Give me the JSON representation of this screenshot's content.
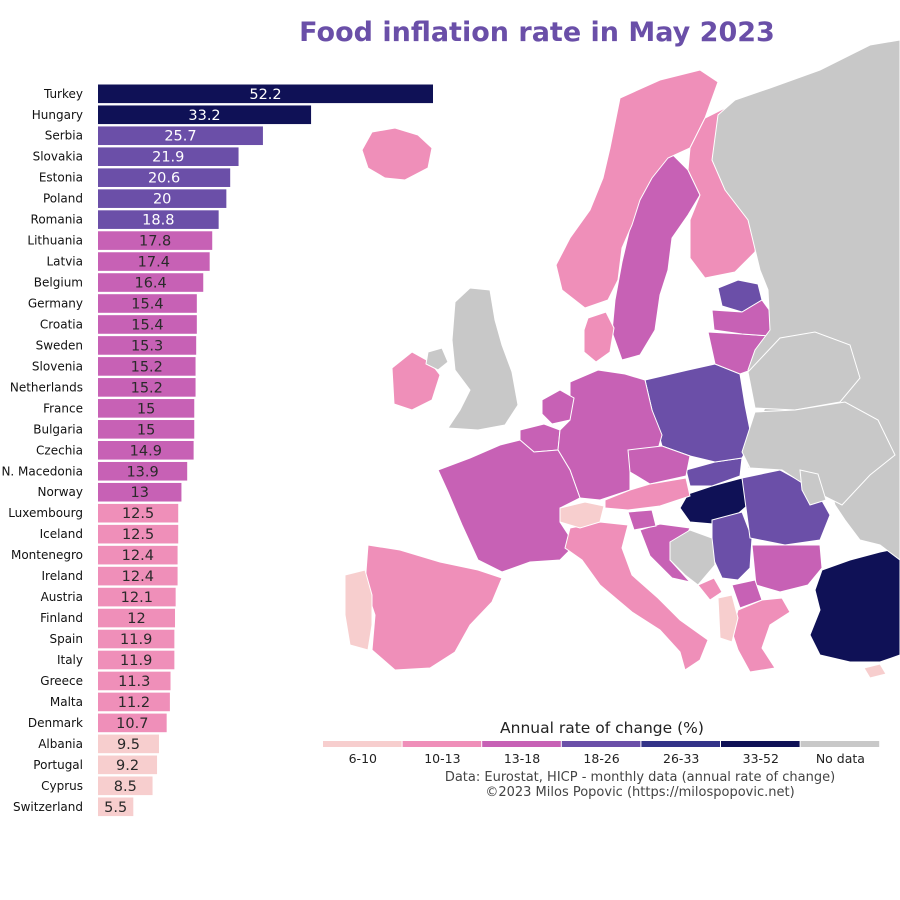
{
  "chart_data": {
    "type": "bar",
    "orientation": "horizontal",
    "title": "Food inflation rate in May 2023",
    "categories": [
      "Turkey",
      "Hungary",
      "Serbia",
      "Slovakia",
      "Estonia",
      "Poland",
      "Romania",
      "Lithuania",
      "Latvia",
      "Belgium",
      "Germany",
      "Croatia",
      "Sweden",
      "Slovenia",
      "Netherlands",
      "France",
      "Bulgaria",
      "Czechia",
      "N. Macedonia",
      "Norway",
      "Luxembourg",
      "Iceland",
      "Montenegro",
      "Ireland",
      "Austria",
      "Finland",
      "Spain",
      "Italy",
      "Greece",
      "Malta",
      "Denmark",
      "Albania",
      "Portugal",
      "Cyprus",
      "Switzerland"
    ],
    "values": [
      52.2,
      33.2,
      25.7,
      21.9,
      20.6,
      20,
      18.8,
      17.8,
      17.4,
      16.4,
      15.4,
      15.4,
      15.3,
      15.2,
      15.2,
      15,
      15,
      14.9,
      13.9,
      13,
      12.5,
      12.5,
      12.4,
      12.4,
      12.1,
      12,
      11.9,
      11.9,
      11.3,
      11.2,
      10.7,
      9.5,
      9.2,
      8.5,
      5.5
    ],
    "value_labels": [
      "52.2",
      "33.2",
      "25.7",
      "21.9",
      "20.6",
      "20",
      "18.8",
      "17.8",
      "17.4",
      "16.4",
      "15.4",
      "15.4",
      "15.3",
      "15.2",
      "15.2",
      "15",
      "15",
      "14.9",
      "13.9",
      "13",
      "12.5",
      "12.5",
      "12.4",
      "12.4",
      "12.1",
      "12",
      "11.9",
      "11.9",
      "11.3",
      "11.2",
      "10.7",
      "9.5",
      "9.2",
      "8.5",
      "5.5"
    ],
    "xlim": [
      0,
      52.2
    ],
    "legend": {
      "title": "Annual rate of change (%)",
      "placement": "bottom-right",
      "bins": [
        {
          "label": "6-10",
          "min": 0,
          "max": 10,
          "color": "#f7cece"
        },
        {
          "label": "10-13",
          "min": 10,
          "max": 13,
          "color": "#ef8fb9"
        },
        {
          "label": "13-18",
          "min": 13,
          "max": 18,
          "color": "#c761b5"
        },
        {
          "label": "18-26",
          "min": 18,
          "max": 26,
          "color": "#6b4fa8"
        },
        {
          "label": "26-33",
          "min": 26,
          "max": 33,
          "color": "#333388"
        },
        {
          "label": "33-52",
          "min": 33,
          "max": 100,
          "color": "#0f1156"
        },
        {
          "label": "No data",
          "min": null,
          "max": null,
          "color": "#c8c8c8"
        }
      ]
    },
    "source_lines": [
      "Data: Eurostat, HICP - monthly data (annual rate of change)",
      "©2023 Milos Popovic (https://milospopovic.net)"
    ]
  },
  "map": {
    "regions": [
      {
        "name": "Turkey",
        "bin": "33-52"
      },
      {
        "name": "Hungary",
        "bin": "33-52"
      },
      {
        "name": "Serbia",
        "bin": "18-26"
      },
      {
        "name": "Slovakia",
        "bin": "18-26"
      },
      {
        "name": "Estonia",
        "bin": "18-26"
      },
      {
        "name": "Poland",
        "bin": "18-26"
      },
      {
        "name": "Romania",
        "bin": "18-26"
      },
      {
        "name": "Lithuania",
        "bin": "13-18"
      },
      {
        "name": "Latvia",
        "bin": "13-18"
      },
      {
        "name": "Belgium",
        "bin": "13-18"
      },
      {
        "name": "Germany",
        "bin": "13-18"
      },
      {
        "name": "Croatia",
        "bin": "13-18"
      },
      {
        "name": "Sweden",
        "bin": "13-18"
      },
      {
        "name": "Slovenia",
        "bin": "13-18"
      },
      {
        "name": "Netherlands",
        "bin": "13-18"
      },
      {
        "name": "France",
        "bin": "13-18"
      },
      {
        "name": "Bulgaria",
        "bin": "13-18"
      },
      {
        "name": "Czechia",
        "bin": "13-18"
      },
      {
        "name": "N. Macedonia",
        "bin": "13-18"
      },
      {
        "name": "Norway",
        "bin": "10-13"
      },
      {
        "name": "Iceland",
        "bin": "10-13"
      },
      {
        "name": "Ireland",
        "bin": "10-13"
      },
      {
        "name": "Austria",
        "bin": "10-13"
      },
      {
        "name": "Finland",
        "bin": "10-13"
      },
      {
        "name": "Spain",
        "bin": "10-13"
      },
      {
        "name": "Italy",
        "bin": "10-13"
      },
      {
        "name": "Greece",
        "bin": "10-13"
      },
      {
        "name": "Denmark",
        "bin": "10-13"
      },
      {
        "name": "Montenegro",
        "bin": "10-13"
      },
      {
        "name": "Albania",
        "bin": "6-10"
      },
      {
        "name": "Portugal",
        "bin": "6-10"
      },
      {
        "name": "Cyprus",
        "bin": "6-10"
      },
      {
        "name": "Switzerland",
        "bin": "6-10"
      },
      {
        "name": "United Kingdom",
        "bin": "No data"
      },
      {
        "name": "Bosnia and Herzegovina",
        "bin": "No data"
      },
      {
        "name": "Russia",
        "bin": "No data"
      },
      {
        "name": "Belarus",
        "bin": "No data"
      },
      {
        "name": "Ukraine",
        "bin": "No data"
      },
      {
        "name": "Moldova",
        "bin": "No data"
      },
      {
        "name": "Northern Ireland",
        "bin": "No data"
      }
    ]
  }
}
